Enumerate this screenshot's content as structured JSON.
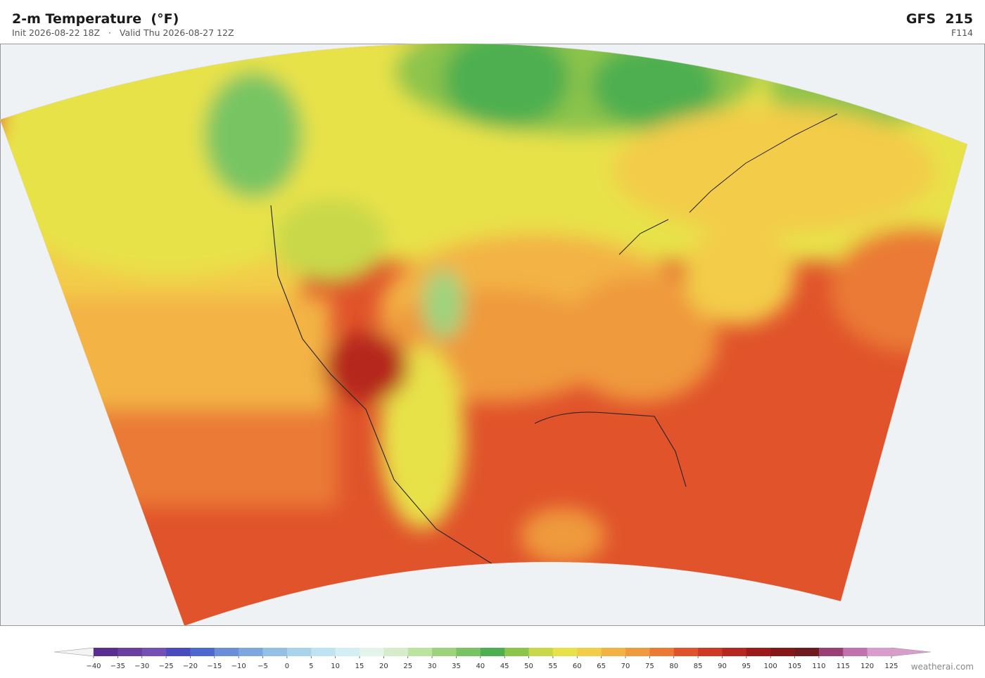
{
  "header": {
    "title": "2-m Temperature  (°F)",
    "init": "Init 2026-08-22 18Z",
    "valid": "Valid Thu 2026-08-27 12Z",
    "model": "GFS  215",
    "forecast_hour": "F114"
  },
  "colorbar": {
    "ticks": [
      {
        "value": -40,
        "label": "−40"
      },
      {
        "value": -35,
        "label": "−35"
      },
      {
        "value": -30,
        "label": "−30"
      },
      {
        "value": -25,
        "label": "−25"
      },
      {
        "value": -20,
        "label": "−20"
      },
      {
        "value": -15,
        "label": "−15"
      },
      {
        "value": -10,
        "label": "−10"
      },
      {
        "value": -5,
        "label": "−5"
      },
      0,
      5,
      10,
      15,
      20,
      25,
      30,
      35,
      40,
      45,
      50,
      55,
      60,
      65,
      70,
      75,
      80,
      85,
      90,
      95,
      100,
      105,
      110,
      115,
      120,
      125
    ],
    "colors": [
      "#5a2d91",
      "#6b3fa0",
      "#7450b5",
      "#4b4bc0",
      "#4f68cf",
      "#6a8fd8",
      "#7fa7df",
      "#93c0e4",
      "#a9d3ea",
      "#bfe3f0",
      "#d5eef4",
      "#e5f4ea",
      "#d6eccb",
      "#bde3a1",
      "#9ed37e",
      "#78c463",
      "#4daf4f",
      "#8dc44c",
      "#c8d84a",
      "#e8e24a",
      "#f3cc48",
      "#f3b344",
      "#ef9a3e",
      "#ea7a35",
      "#e0532b",
      "#cc3a26",
      "#b5271f",
      "#9c1a1b",
      "#841717",
      "#6f1a1e",
      "#9a3f74",
      "#bf72ad",
      "#d99dcc"
    ],
    "under_color": "#f4f4f4",
    "over_color": "#d99dcc"
  },
  "credit": "weatherai.com"
}
